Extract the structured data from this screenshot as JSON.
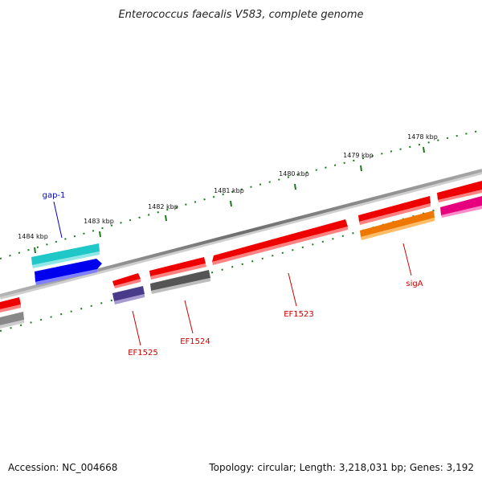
{
  "title": "Enterococcus faecalis V583, complete genome",
  "footer": {
    "accession": "Accession: NC_004668",
    "summary": "Topology: circular; Length: 3,218,031 bp; Genes: 3,192"
  },
  "colors": {
    "backbone": "#7a7a7a",
    "tick": "#1a7a1a",
    "label_red": "#cc0000",
    "label_blue": "#0000cc"
  },
  "ticks": [
    {
      "label": "1484 kbp"
    },
    {
      "label": "1483 kbp"
    },
    {
      "label": "1482 kbp"
    },
    {
      "label": "1481 kbp"
    },
    {
      "label": "1480 kbp"
    },
    {
      "label": "1479 kbp"
    },
    {
      "label": "1478 kbp"
    }
  ],
  "features": [
    {
      "name": "gap-1",
      "color": "#0000cc"
    },
    {
      "name": "EF1525",
      "color": "#cc0000"
    },
    {
      "name": "EF1524",
      "color": "#cc0000"
    },
    {
      "name": "EF1523",
      "color": "#cc0000"
    },
    {
      "name": "sigA",
      "color": "#cc0000"
    }
  ]
}
